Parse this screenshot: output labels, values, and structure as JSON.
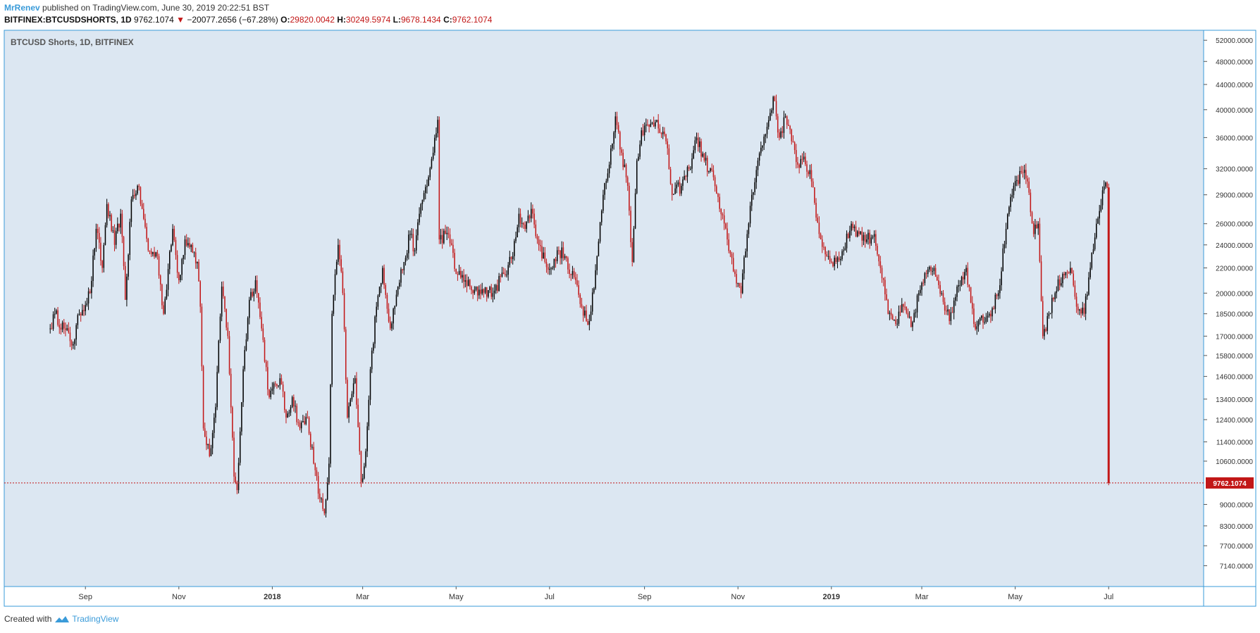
{
  "header": {
    "author": "MrRenev",
    "published_text": "published on TradingView.com, June 30, 2019 20:22:51 BST",
    "symbol": "BITFINEX:BTCUSDSHORTS, 1D",
    "last": "9762.1074",
    "change": "−20077.2656 (−67.28%)",
    "o_label": "O:",
    "o_value": "29820.0042",
    "h_label": "H:",
    "h_value": "30249.5974",
    "l_label": "L:",
    "l_value": "9678.1434",
    "c_label": "C:",
    "c_value": "9762.1074"
  },
  "legend_text": "BTCUSD Shorts, 1D, BITFINEX",
  "footer": {
    "created": "Created with",
    "brand": "TradingView"
  },
  "colors": {
    "up": "#000000",
    "down": "#c21717",
    "background": "#dce7f2",
    "axis": "#3a9bd9",
    "price_label": "#c21717"
  },
  "chart_data": {
    "type": "candlestick",
    "title": "BTCUSD Shorts, 1D, BITFINEX",
    "y_scale": "log",
    "ylim": [
      6600,
      54000
    ],
    "y_ticks": [
      "52000.0000",
      "48000.0000",
      "44000.0000",
      "40000.0000",
      "36000.0000",
      "32000.0000",
      "29000.0000",
      "26000.0000",
      "24000.0000",
      "22000.0000",
      "20000.0000",
      "18500.0000",
      "17000.0000",
      "15800.0000",
      "14600.0000",
      "13400.0000",
      "12400.0000",
      "11400.0000",
      "10600.0000",
      "9000.0000",
      "8300.0000",
      "7700.0000",
      "7140.0000"
    ],
    "x_range": [
      "2017-07-10",
      "2019-09-01"
    ],
    "x_ticks": [
      {
        "date": "2017-09-01",
        "label": "Sep",
        "bold": false
      },
      {
        "date": "2017-11-01",
        "label": "Nov",
        "bold": false
      },
      {
        "date": "2018-01-01",
        "label": "2018",
        "bold": true
      },
      {
        "date": "2018-03-01",
        "label": "Mar",
        "bold": false
      },
      {
        "date": "2018-05-01",
        "label": "May",
        "bold": false
      },
      {
        "date": "2018-07-01",
        "label": "Jul",
        "bold": false
      },
      {
        "date": "2018-09-01",
        "label": "Sep",
        "bold": false
      },
      {
        "date": "2018-11-01",
        "label": "Nov",
        "bold": false
      },
      {
        "date": "2019-01-01",
        "label": "2019",
        "bold": true
      },
      {
        "date": "2019-03-01",
        "label": "Mar",
        "bold": false
      },
      {
        "date": "2019-05-01",
        "label": "May",
        "bold": false
      },
      {
        "date": "2019-07-01",
        "label": "Jul",
        "bold": false
      }
    ],
    "last_price": 9762.1074,
    "last_price_label": "9762.1074",
    "anchors": [
      [
        "2017-08-09",
        17500
      ],
      [
        "2017-08-12",
        18500
      ],
      [
        "2017-08-18",
        17500
      ],
      [
        "2017-08-24",
        16500
      ],
      [
        "2017-08-28",
        18500
      ],
      [
        "2017-09-04",
        20000
      ],
      [
        "2017-09-08",
        25500
      ],
      [
        "2017-09-12",
        22000
      ],
      [
        "2017-09-15",
        28000
      ],
      [
        "2017-09-20",
        24000
      ],
      [
        "2017-09-24",
        27000
      ],
      [
        "2017-09-27",
        19500
      ],
      [
        "2017-10-01",
        28500
      ],
      [
        "2017-10-05",
        30000
      ],
      [
        "2017-10-08",
        27500
      ],
      [
        "2017-10-12",
        23500
      ],
      [
        "2017-10-18",
        23000
      ],
      [
        "2017-10-22",
        18500
      ],
      [
        "2017-10-28",
        25500
      ],
      [
        "2017-11-01",
        21000
      ],
      [
        "2017-11-05",
        24500
      ],
      [
        "2017-11-09",
        24000
      ],
      [
        "2017-11-13",
        22500
      ],
      [
        "2017-11-15",
        19000
      ],
      [
        "2017-11-17",
        12000
      ],
      [
        "2017-11-21",
        10800
      ],
      [
        "2017-11-25",
        13000
      ],
      [
        "2017-11-29",
        20500
      ],
      [
        "2017-12-03",
        17000
      ],
      [
        "2017-12-07",
        10000
      ],
      [
        "2017-12-09",
        9500
      ],
      [
        "2017-12-13",
        15000
      ],
      [
        "2017-12-17",
        19500
      ],
      [
        "2017-12-21",
        21000
      ],
      [
        "2017-12-25",
        17500
      ],
      [
        "2017-12-30",
        13500
      ],
      [
        "2018-01-06",
        14500
      ],
      [
        "2018-01-10",
        12500
      ],
      [
        "2018-01-14",
        13500
      ],
      [
        "2018-01-19",
        12000
      ],
      [
        "2018-01-24",
        12500
      ],
      [
        "2018-01-28",
        10500
      ],
      [
        "2018-02-01",
        9200
      ],
      [
        "2018-02-04",
        8700
      ],
      [
        "2018-02-07",
        10500
      ],
      [
        "2018-02-09",
        18500
      ],
      [
        "2018-02-13",
        24000
      ],
      [
        "2018-02-16",
        20000
      ],
      [
        "2018-02-19",
        12500
      ],
      [
        "2018-02-24",
        14500
      ],
      [
        "2018-02-28",
        9800
      ],
      [
        "2018-03-03",
        11000
      ],
      [
        "2018-03-06",
        15000
      ],
      [
        "2018-03-10",
        19000
      ],
      [
        "2018-03-14",
        22000
      ],
      [
        "2018-03-19",
        17500
      ],
      [
        "2018-03-24",
        20500
      ],
      [
        "2018-03-28",
        22500
      ],
      [
        "2018-04-01",
        25000
      ],
      [
        "2018-04-04",
        23500
      ],
      [
        "2018-04-08",
        28000
      ],
      [
        "2018-04-13",
        31000
      ],
      [
        "2018-04-16",
        34000
      ],
      [
        "2018-04-19",
        38500
      ],
      [
        "2018-04-20",
        24500
      ],
      [
        "2018-04-24",
        25000
      ],
      [
        "2018-04-28",
        24000
      ],
      [
        "2018-05-01",
        21500
      ],
      [
        "2018-05-07",
        21000
      ],
      [
        "2018-05-12",
        20000
      ],
      [
        "2018-05-18",
        20300
      ],
      [
        "2018-05-25",
        20000
      ],
      [
        "2018-06-01",
        21500
      ],
      [
        "2018-06-07",
        23000
      ],
      [
        "2018-06-11",
        27000
      ],
      [
        "2018-06-15",
        25500
      ],
      [
        "2018-06-19",
        27500
      ],
      [
        "2018-06-23",
        24500
      ],
      [
        "2018-06-28",
        22500
      ],
      [
        "2018-07-03",
        22000
      ],
      [
        "2018-07-07",
        23500
      ],
      [
        "2018-07-11",
        23000
      ],
      [
        "2018-07-14",
        21500
      ],
      [
        "2018-07-18",
        21000
      ],
      [
        "2018-07-22",
        19000
      ],
      [
        "2018-07-27",
        18000
      ],
      [
        "2018-08-01",
        23000
      ],
      [
        "2018-08-05",
        29000
      ],
      [
        "2018-08-09",
        32500
      ],
      [
        "2018-08-13",
        39000
      ],
      [
        "2018-08-17",
        34000
      ],
      [
        "2018-08-21",
        30000
      ],
      [
        "2018-08-24",
        22500
      ],
      [
        "2018-08-27",
        33000
      ],
      [
        "2018-08-30",
        37000
      ],
      [
        "2018-09-04",
        37500
      ],
      [
        "2018-09-09",
        38500
      ],
      [
        "2018-09-15",
        35500
      ],
      [
        "2018-09-19",
        29000
      ],
      [
        "2018-09-25",
        30000
      ],
      [
        "2018-09-30",
        32000
      ],
      [
        "2018-10-05",
        36000
      ],
      [
        "2018-10-10",
        33000
      ],
      [
        "2018-10-16",
        31000
      ],
      [
        "2018-10-20",
        27500
      ],
      [
        "2018-10-25",
        24500
      ],
      [
        "2018-10-30",
        21500
      ],
      [
        "2018-11-03",
        20000
      ],
      [
        "2018-11-07",
        25000
      ],
      [
        "2018-11-10",
        29000
      ],
      [
        "2018-11-14",
        33000
      ],
      [
        "2018-11-20",
        37500
      ],
      [
        "2018-11-24",
        42000
      ],
      [
        "2018-11-28",
        36000
      ],
      [
        "2018-12-02",
        39000
      ],
      [
        "2018-12-06",
        35500
      ],
      [
        "2018-12-10",
        32500
      ],
      [
        "2018-12-14",
        33500
      ],
      [
        "2018-12-19",
        30500
      ],
      [
        "2018-12-24",
        25000
      ],
      [
        "2018-12-29",
        23000
      ],
      [
        "2019-01-04",
        22500
      ],
      [
        "2019-01-09",
        23500
      ],
      [
        "2019-01-14",
        26000
      ],
      [
        "2019-01-19",
        25000
      ],
      [
        "2019-01-24",
        24500
      ],
      [
        "2019-01-29",
        25000
      ],
      [
        "2019-02-02",
        22000
      ],
      [
        "2019-02-07",
        18500
      ],
      [
        "2019-02-12",
        17800
      ],
      [
        "2019-02-17",
        19000
      ],
      [
        "2019-02-22",
        17600
      ],
      [
        "2019-02-27",
        20000
      ],
      [
        "2019-03-04",
        21500
      ],
      [
        "2019-03-09",
        22000
      ],
      [
        "2019-03-14",
        20000
      ],
      [
        "2019-03-19",
        18000
      ],
      [
        "2019-03-24",
        20500
      ],
      [
        "2019-03-30",
        22000
      ],
      [
        "2019-04-04",
        17800
      ],
      [
        "2019-04-08",
        18200
      ],
      [
        "2019-04-14",
        18500
      ],
      [
        "2019-04-20",
        20000
      ],
      [
        "2019-04-25",
        25500
      ],
      [
        "2019-04-30",
        30000
      ],
      [
        "2019-05-06",
        31500
      ],
      [
        "2019-05-09",
        30500
      ],
      [
        "2019-05-13",
        25000
      ],
      [
        "2019-05-16",
        26000
      ],
      [
        "2019-05-19",
        17000
      ],
      [
        "2019-05-23",
        18500
      ],
      [
        "2019-05-27",
        20000
      ],
      [
        "2019-06-01",
        21500
      ],
      [
        "2019-06-06",
        22000
      ],
      [
        "2019-06-10",
        19000
      ],
      [
        "2019-06-15",
        18500
      ],
      [
        "2019-06-19",
        22000
      ],
      [
        "2019-06-23",
        26000
      ],
      [
        "2019-06-27",
        29500
      ],
      [
        "2019-06-30",
        29820
      ]
    ],
    "final_candle": {
      "date": "2019-07-01",
      "open": 29820.0042,
      "high": 30249.5974,
      "low": 9678.1434,
      "close": 9762.1074
    }
  }
}
